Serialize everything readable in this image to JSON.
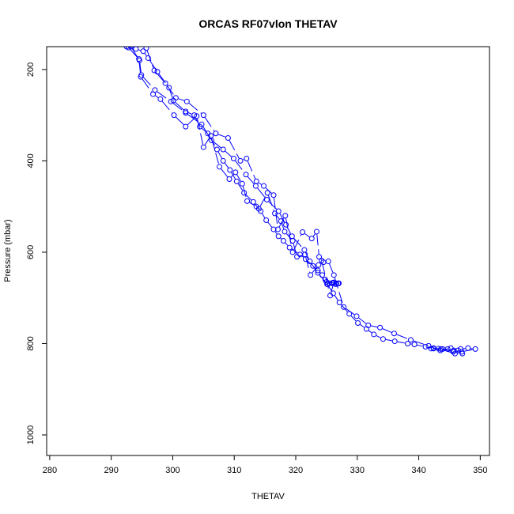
{
  "chart_data": {
    "type": "line",
    "title": "ORCAS RF07vlon THETAV",
    "xlabel": "THETAV",
    "ylabel": "Pressure (mbar)",
    "xlim": [
      279.5,
      351.5
    ],
    "ylim": [
      1045,
      150
    ],
    "y_reversed": true,
    "x_ticks": [
      280,
      290,
      300,
      310,
      320,
      330,
      340,
      350
    ],
    "y_ticks": [
      200,
      400,
      600,
      800,
      1000
    ],
    "grid": false,
    "legend": "none",
    "line_style": "longdash",
    "marker": "open-circle",
    "color": "#0000ff",
    "series": [
      {
        "x": [
          292.5,
          294.0,
          295.2,
          296.0,
          297.5,
          299.4,
          300.1,
          302.1,
          303.5,
          304.4,
          305.7,
          307.2,
          308.2,
          309.3,
          310.4,
          311.6,
          313.1,
          314.3,
          315.2,
          316.4,
          317.2,
          318.0,
          319.0,
          320.7,
          321.6,
          322.8,
          323.6,
          324.3,
          324.8,
          325.2,
          326.0,
          326.5,
          327.0,
          325.0,
          325.5,
          326.0,
          326.6,
          326.9,
          327.0
        ],
        "y": [
          150,
          155,
          160,
          175,
          205,
          240,
          268,
          292,
          300,
          325,
          340,
          375,
          400,
          420,
          445,
          470,
          490,
          510,
          530,
          550,
          565,
          575,
          590,
          605,
          615,
          630,
          640,
          650,
          660,
          670,
          668,
          670,
          668,
          665,
          668,
          667,
          668,
          668,
          668
        ]
      },
      {
        "x": [
          293.2,
          294.6,
          294.9,
          297.1,
          299.7,
          302.1,
          304.7,
          306.3,
          308.2,
          309.9,
          311.9,
          313.5,
          315.3,
          317.2,
          318.4,
          319.4,
          321.4,
          322.3,
          323.6,
          325.1,
          326.1,
          327.1,
          328.7,
          330.1,
          331.5,
          332.7,
          334.2,
          336.1,
          338.2,
          339.3,
          341.1,
          342.4,
          343.6,
          344.7,
          345.7,
          347.0,
          349.2,
          348.0,
          346.8,
          345.9,
          343.2,
          342.4
        ],
        "y": [
          150,
          180,
          212,
          245,
          270,
          295,
          320,
          355,
          375,
          395,
          430,
          455,
          485,
          510,
          540,
          565,
          595,
          620,
          645,
          670,
          690,
          710,
          735,
          755,
          768,
          780,
          790,
          795,
          800,
          802,
          807,
          810,
          812,
          812,
          815,
          818,
          812,
          810,
          812,
          822,
          811,
          811
        ]
      },
      {
        "x": [
          292.8,
          294.5,
          294.8,
          296.8,
          298.0,
          300.2,
          302.1,
          303.9,
          305.0,
          306.2,
          307.6,
          309.2,
          310.2,
          311.3,
          312.1,
          313.6,
          314.0,
          315.4,
          316.6,
          317.6,
          318.2,
          319.5,
          320.2,
          321.5,
          322.4,
          323.7,
          324.2,
          325.6,
          326.2
        ],
        "y": [
          152,
          177,
          216,
          254,
          265,
          300,
          325,
          302,
          370,
          345,
          413,
          440,
          425,
          450,
          488,
          500,
          505,
          470,
          515,
          532,
          555,
          575,
          610,
          605,
          650,
          628,
          618,
          695,
          666
        ]
      },
      {
        "x": [
          295.7,
          297.0,
          298.8,
          300.5,
          302.3,
          305.0,
          307.0,
          309.0,
          311.0,
          312.0,
          313.6,
          314.8,
          316.4,
          317.1,
          318.3,
          319.5,
          321.1,
          322.6,
          323.4,
          323.8,
          324.5,
          325.3,
          326.2,
          327.8,
          329.9,
          331.8,
          333.7,
          336.0,
          338.7,
          341.6,
          343.5,
          345.2,
          346.4,
          347.1,
          345.6,
          343.9,
          342.0
        ],
        "y": [
          153,
          202,
          230,
          262,
          270,
          300,
          340,
          350,
          400,
          395,
          445,
          455,
          475,
          550,
          520,
          600,
          556,
          570,
          555,
          610,
          622,
          620,
          650,
          720,
          740,
          760,
          765,
          778,
          792,
          805,
          815,
          810,
          815,
          822,
          818,
          812,
          811
        ]
      }
    ]
  }
}
